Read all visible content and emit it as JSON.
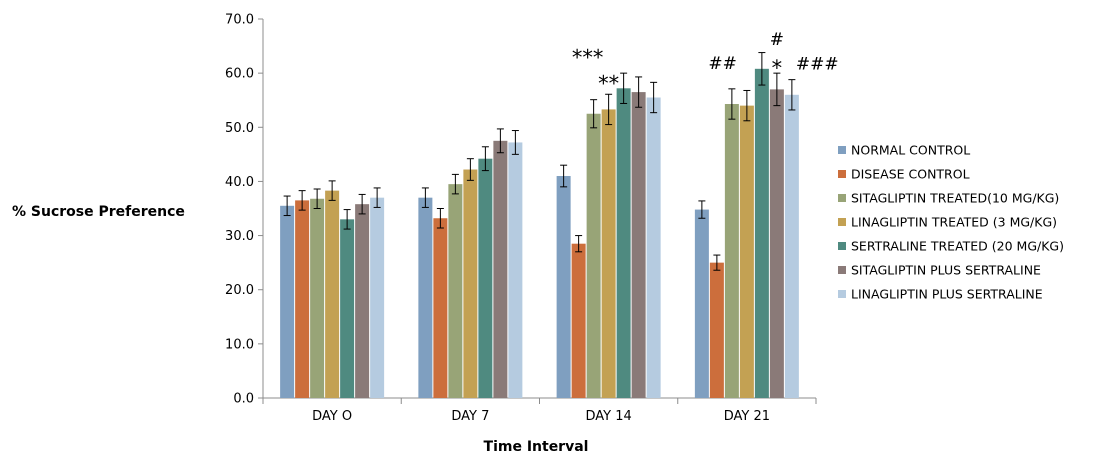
{
  "chart_data": {
    "type": "bar",
    "title": "",
    "xlabel": "Time Interval",
    "ylabel": "% Sucrose Preference",
    "ylim": [
      0,
      70
    ],
    "yticks": [
      "0.0",
      "10.0",
      "20.0",
      "30.0",
      "40.0",
      "50.0",
      "60.0",
      "70.0"
    ],
    "categories": [
      "DAY O",
      "DAY 7",
      "DAY 14",
      "DAY 21"
    ],
    "legend_position": "right",
    "grid": false,
    "series": [
      {
        "name": "NORMAL CONTROL",
        "color": "#7f9fc0",
        "values": [
          35.5,
          37.0,
          41.0,
          34.8
        ],
        "errors": [
          1.8,
          1.8,
          2.0,
          1.6
        ]
      },
      {
        "name": "DISEASE CONTROL",
        "color": "#cc6e3c",
        "values": [
          36.5,
          33.2,
          28.5,
          25.0
        ],
        "errors": [
          1.8,
          1.8,
          1.5,
          1.4
        ]
      },
      {
        "name": "SITAGLIPTIN TREATED(10 MG/KG)",
        "color": "#98a477",
        "values": [
          36.8,
          39.5,
          52.5,
          54.3
        ],
        "errors": [
          1.8,
          1.8,
          2.6,
          2.8
        ]
      },
      {
        "name": "LINAGLIPTIN TREATED (3 MG/KG)",
        "color": "#c3a153",
        "values": [
          38.3,
          42.2,
          53.3,
          54.0
        ],
        "errors": [
          1.8,
          2.0,
          2.8,
          2.8
        ]
      },
      {
        "name": "SERTRALINE TREATED (20 MG/KG)",
        "color": "#4f8a80",
        "values": [
          33.0,
          44.2,
          57.2,
          60.8
        ],
        "errors": [
          1.8,
          2.2,
          2.8,
          3.0
        ]
      },
      {
        "name": "SITAGLIPTIN PLUS SERTRALINE",
        "color": "#8a7a78",
        "values": [
          35.8,
          47.5,
          56.5,
          57.0
        ],
        "errors": [
          1.8,
          2.2,
          2.8,
          3.0
        ]
      },
      {
        "name": "LINAGLIPTIN PLUS SERTRALINE",
        "color": "#b5cbe0",
        "values": [
          37.0,
          47.2,
          55.5,
          56.0
        ],
        "errors": [
          1.8,
          2.2,
          2.8,
          2.8
        ]
      }
    ],
    "annotations": [
      {
        "text": "***",
        "category": 2,
        "series": 2,
        "font": "sans"
      },
      {
        "text": "**",
        "category": 2,
        "series": 3,
        "font": "sans"
      },
      {
        "text": "##",
        "category": 3,
        "series": 2,
        "font": "serif"
      },
      {
        "text": "#",
        "category": 3,
        "series": 5,
        "font": "serif"
      },
      {
        "text": "*",
        "category": 3,
        "series": 5,
        "font": "sans"
      },
      {
        "text": "###",
        "category": 3,
        "series": 6,
        "font": "serif"
      }
    ]
  }
}
